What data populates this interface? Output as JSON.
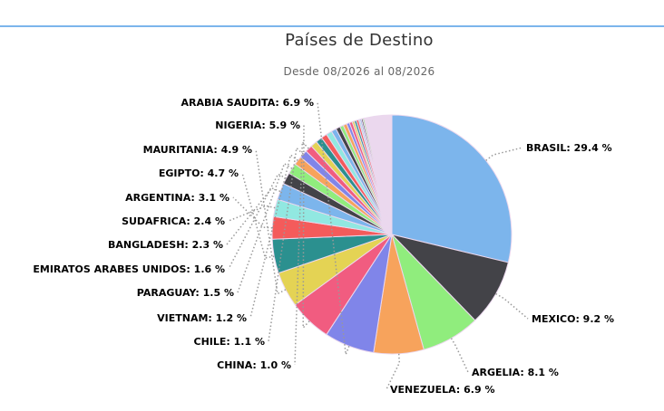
{
  "title": "Países de Destino",
  "subtitle": "Desde 08/2026 al 08/2026",
  "colors": {
    "accent_rule": "#7cb5ec",
    "connector": "#999999",
    "slice_border": "#ebd8ee"
  },
  "chart_data": {
    "type": "pie",
    "title": "Países de Destino",
    "subtitle": "Desde 08/2026 al 08/2026",
    "unit": "%",
    "slices": [
      {
        "label": "BRASIL",
        "value": 29.4,
        "color": "#7cb5ec",
        "show_label": true
      },
      {
        "label": "MEXICO",
        "value": 9.2,
        "color": "#434348",
        "show_label": true
      },
      {
        "label": "ARGELIA",
        "value": 8.1,
        "color": "#90ed7d",
        "show_label": true
      },
      {
        "label": "VENEZUELA",
        "value": 6.9,
        "color": "#f7a35c",
        "show_label": true
      },
      {
        "label": "ARABIA SAUDITA",
        "value": 6.9,
        "color": "#8085e9",
        "show_label": true
      },
      {
        "label": "NIGERIA",
        "value": 5.9,
        "color": "#f15c80",
        "show_label": true
      },
      {
        "label": "MAURITANIA",
        "value": 4.9,
        "color": "#e4d354",
        "show_label": true
      },
      {
        "label": "EGIPTO",
        "value": 4.7,
        "color": "#2b908f",
        "show_label": true
      },
      {
        "label": "ARGENTINA",
        "value": 3.1,
        "color": "#f45b5b",
        "show_label": true
      },
      {
        "label": "SUDAFRICA",
        "value": 2.4,
        "color": "#91e8e1",
        "show_label": true
      },
      {
        "label": "BANGLADESH",
        "value": 2.3,
        "color": "#7cb5ec",
        "show_label": true
      },
      {
        "label": "EMIRATOS ARABES UNIDOS",
        "value": 1.6,
        "color": "#434348",
        "show_label": true
      },
      {
        "label": "PARAGUAY",
        "value": 1.5,
        "color": "#90ed7d",
        "show_label": true
      },
      {
        "label": "VIETNAM",
        "value": 1.2,
        "color": "#f7a35c",
        "show_label": true
      },
      {
        "label": "CHILE",
        "value": 1.1,
        "color": "#8085e9",
        "show_label": true
      },
      {
        "label": "CHINA",
        "value": 1.0,
        "color": "#f15c80",
        "show_label": true
      },
      {
        "label": "",
        "value": 0.9,
        "color": "#e4d354",
        "show_label": false
      },
      {
        "label": "",
        "value": 0.9,
        "color": "#2b908f",
        "show_label": false
      },
      {
        "label": "",
        "value": 0.8,
        "color": "#f45b5b",
        "show_label": false
      },
      {
        "label": "",
        "value": 0.8,
        "color": "#91e8e1",
        "show_label": false
      },
      {
        "label": "",
        "value": 0.7,
        "color": "#7cb5ec",
        "show_label": false
      },
      {
        "label": "",
        "value": 0.6,
        "color": "#434348",
        "show_label": false
      },
      {
        "label": "",
        "value": 0.5,
        "color": "#90ed7d",
        "show_label": false
      },
      {
        "label": "",
        "value": 0.5,
        "color": "#f7a35c",
        "show_label": false
      },
      {
        "label": "",
        "value": 0.4,
        "color": "#8085e9",
        "show_label": false
      },
      {
        "label": "",
        "value": 0.4,
        "color": "#f15c80",
        "show_label": false
      },
      {
        "label": "",
        "value": 0.3,
        "color": "#e4d354",
        "show_label": false
      },
      {
        "label": "",
        "value": 0.3,
        "color": "#2b908f",
        "show_label": false
      },
      {
        "label": "",
        "value": 0.3,
        "color": "#f45b5b",
        "show_label": false
      },
      {
        "label": "",
        "value": 0.2,
        "color": "#91e8e1",
        "show_label": false
      },
      {
        "label": "",
        "value": 0.2,
        "color": "#7cb5ec",
        "show_label": false
      },
      {
        "label": "",
        "value": 0.2,
        "color": "#434348",
        "show_label": false
      },
      {
        "label": "",
        "value": 0.2,
        "color": "#90ed7d",
        "show_label": false
      },
      {
        "label": "",
        "value": 3.8,
        "color": "#ebd8ee",
        "show_label": false
      }
    ]
  }
}
